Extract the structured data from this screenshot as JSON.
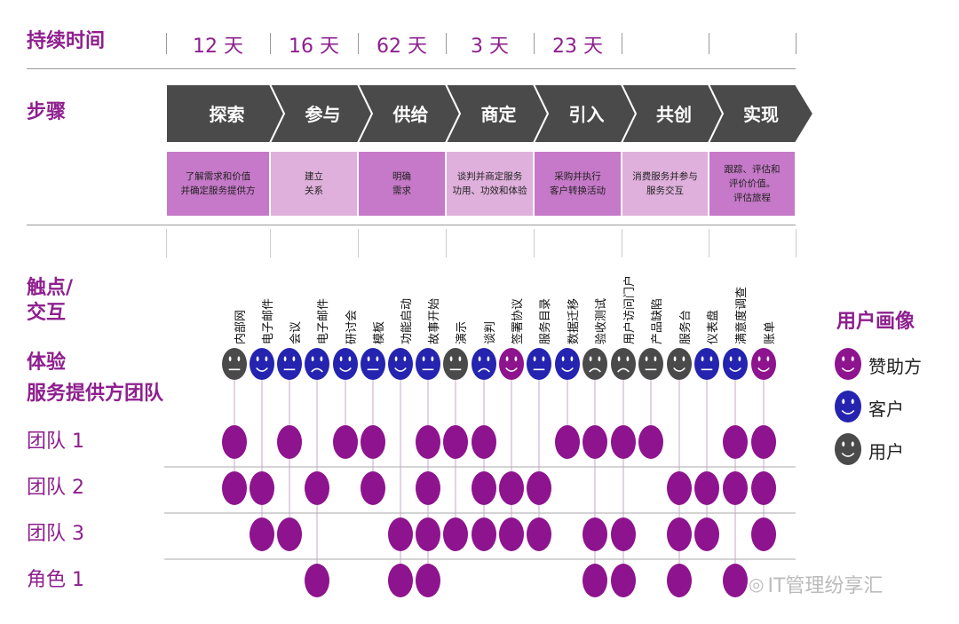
{
  "row_labels": {
    "duration": "持续时间",
    "steps": "步骤",
    "touchpoints_line1": "触点/",
    "touchpoints_line2": "交互",
    "experience": "体验",
    "team": "服务提供方团队"
  },
  "durations": [
    "12 天",
    "16 天",
    "62 天",
    "3 天",
    "23 天",
    "",
    ""
  ],
  "steps": [
    {
      "label": "探索",
      "desc": "了解需求和价值\n并确定服务提供方",
      "desc_color": "#c679c8"
    },
    {
      "label": "参与",
      "desc": "建立\n关系",
      "desc_color": "#dfb0dc"
    },
    {
      "label": "供给",
      "desc": "明确\n需求",
      "desc_color": "#c679c8"
    },
    {
      "label": "商定",
      "desc": "谈判并商定服务\n功用、功效和体验",
      "desc_color": "#dfb0dc"
    },
    {
      "label": "引入",
      "desc": "采购并执行\n客户转换活动",
      "desc_color": "#c679c8"
    },
    {
      "label": "共创",
      "desc": "消费服务并参与\n服务交互",
      "desc_color": "#dfb0dc"
    },
    {
      "label": "实现",
      "desc": "跟踪、评估和\n评价价值。\n评估旅程",
      "desc_color": "#c679c8"
    }
  ],
  "touchpoints": [
    {
      "label": "内部网",
      "persona": "user",
      "mood": "neutral",
      "teams": [
        1,
        1,
        0,
        0
      ]
    },
    {
      "label": "电子邮件",
      "persona": "customer",
      "mood": "happy",
      "teams": [
        0,
        1,
        1,
        0
      ]
    },
    {
      "label": "会议",
      "persona": "customer",
      "mood": "neutral",
      "teams": [
        1,
        0,
        1,
        0
      ]
    },
    {
      "label": "电子邮件",
      "persona": "customer",
      "mood": "sad",
      "teams": [
        0,
        1,
        0,
        1
      ]
    },
    {
      "label": "研讨会",
      "persona": "customer",
      "mood": "happy",
      "teams": [
        1,
        0,
        0,
        0
      ]
    },
    {
      "label": "模板",
      "persona": "customer",
      "mood": "neutral",
      "teams": [
        1,
        1,
        0,
        0
      ]
    },
    {
      "label": "功能启动",
      "persona": "customer",
      "mood": "happy",
      "teams": [
        0,
        0,
        1,
        1
      ]
    },
    {
      "label": "故事开始",
      "persona": "customer",
      "mood": "neutral",
      "teams": [
        1,
        1,
        1,
        1
      ]
    },
    {
      "label": "演示",
      "persona": "user",
      "mood": "neutral",
      "teams": [
        1,
        0,
        1,
        0
      ]
    },
    {
      "label": "谈判",
      "persona": "customer",
      "mood": "sad",
      "teams": [
        1,
        1,
        1,
        0
      ]
    },
    {
      "label": "签署协议",
      "persona": "sponsor",
      "mood": "happy",
      "teams": [
        0,
        1,
        1,
        0
      ]
    },
    {
      "label": "服务目录",
      "persona": "customer",
      "mood": "neutral",
      "teams": [
        0,
        1,
        1,
        0
      ]
    },
    {
      "label": "数据迁移",
      "persona": "customer",
      "mood": "happy",
      "teams": [
        1,
        0,
        0,
        0
      ]
    },
    {
      "label": "验收测试",
      "persona": "user",
      "mood": "sad",
      "teams": [
        1,
        0,
        1,
        1
      ]
    },
    {
      "label": "用户访问门户",
      "persona": "user",
      "mood": "sad",
      "teams": [
        1,
        0,
        1,
        1
      ]
    },
    {
      "label": "产品缺陷",
      "persona": "user",
      "mood": "neutral",
      "teams": [
        1,
        0,
        0,
        0
      ]
    },
    {
      "label": "服务台",
      "persona": "user",
      "mood": "happy",
      "teams": [
        0,
        1,
        1,
        1
      ]
    },
    {
      "label": "仪表盘",
      "persona": "customer",
      "mood": "neutral",
      "teams": [
        0,
        1,
        1,
        0
      ]
    },
    {
      "label": "满意度调查",
      "persona": "customer",
      "mood": "happy",
      "teams": [
        1,
        1,
        0,
        1
      ]
    },
    {
      "label": "账单",
      "persona": "sponsor",
      "mood": "happy",
      "teams": [
        1,
        1,
        1,
        0
      ]
    }
  ],
  "teams": [
    "团队 1",
    "团队 2",
    "团队 3",
    "角色 1"
  ],
  "legend": {
    "title": "用户画像",
    "items": [
      {
        "key": "sponsor",
        "label": "赞助方"
      },
      {
        "key": "customer",
        "label": "客户"
      },
      {
        "key": "user",
        "label": "用户"
      }
    ]
  },
  "colors": {
    "sponsor": "#8e138e",
    "customer": "#2424b0",
    "user": "#4a4a4a",
    "accent": "#8e1f8e",
    "arrow": "#4a4a4a"
  },
  "watermark": "IT管理纷享汇"
}
